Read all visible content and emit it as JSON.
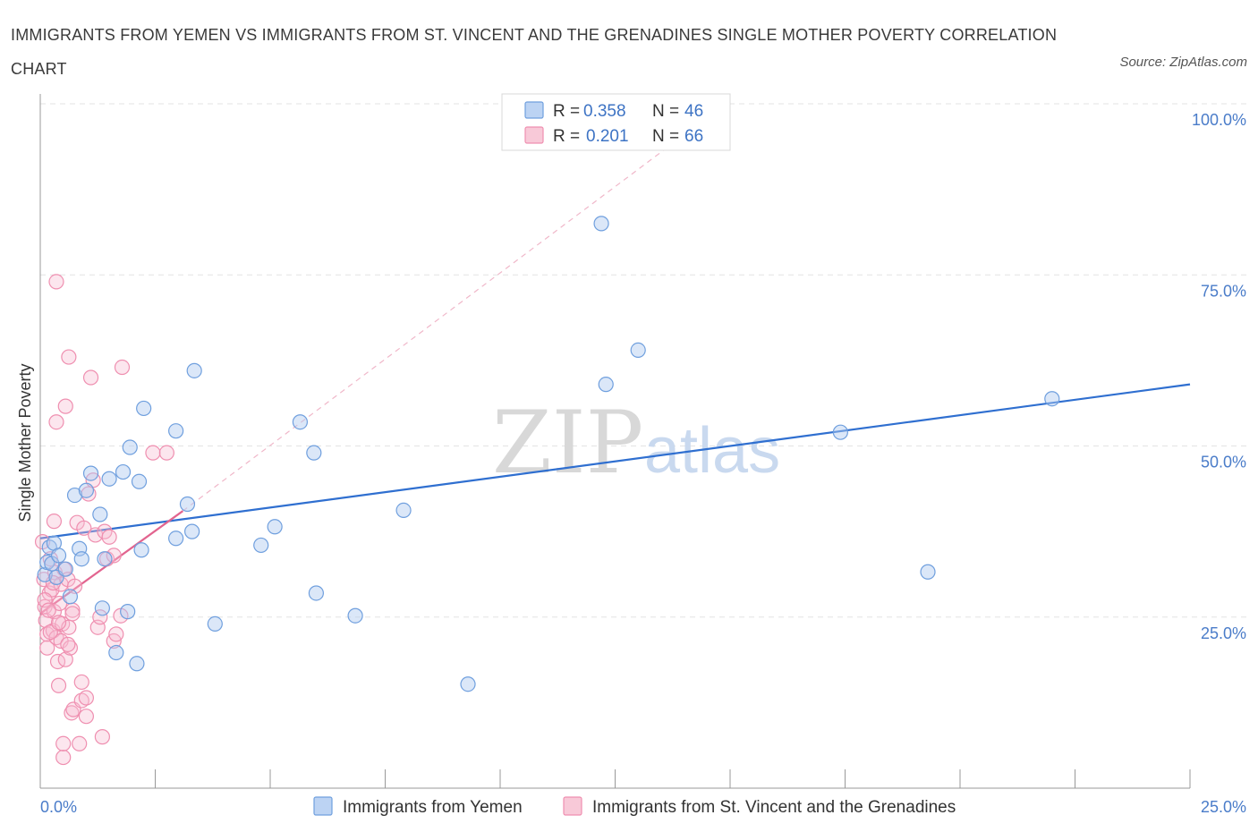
{
  "title": "IMMIGRANTS FROM YEMEN VS IMMIGRANTS FROM ST. VINCENT AND THE GRENADINES SINGLE MOTHER POVERTY CORRELATION CHART",
  "source": "Source: ZipAtlas.com",
  "watermark": {
    "zip": "ZIP",
    "atlas": "atlas"
  },
  "chart_data": {
    "type": "scatter",
    "ylabel": "Single Mother Poverty",
    "xlabel": "",
    "xlim": [
      0,
      25
    ],
    "ylim": [
      0,
      100
    ],
    "x_tick_labels": [
      "0.0%",
      "25.0%"
    ],
    "y_ticks": [
      25,
      50,
      75,
      100
    ],
    "y_tick_labels": [
      "25.0%",
      "50.0%",
      "75.0%",
      "100.0%"
    ],
    "grid": true,
    "legend_position": "top-center",
    "colors": {
      "yemen": "#6f9fde",
      "stvincent": "#ef8fb0",
      "yemen_line": "#2f6fd0",
      "stvincent_line": "#e2648f",
      "tick": "#4a7cc9"
    },
    "legend_box": [
      {
        "r_label": "R =",
        "r_value": "0.358",
        "n_label": "N =",
        "n_value": "46"
      },
      {
        "r_label": "R =",
        "r_value": "0.201",
        "n_label": "N =",
        "n_value": "66"
      }
    ],
    "series": [
      {
        "name": "Immigrants from Yemen",
        "trend": {
          "x": [
            0,
            25
          ],
          "y": [
            36.5,
            59.0
          ]
        },
        "points": [
          [
            0.1,
            31.2
          ],
          [
            0.15,
            33.0
          ],
          [
            0.2,
            35.2
          ],
          [
            0.25,
            32.8
          ],
          [
            0.3,
            35.8
          ],
          [
            0.35,
            30.8
          ],
          [
            0.4,
            34.0
          ],
          [
            0.55,
            32.0
          ],
          [
            0.65,
            28.0
          ],
          [
            0.75,
            42.8
          ],
          [
            0.85,
            35.0
          ],
          [
            0.9,
            33.5
          ],
          [
            1.0,
            43.5
          ],
          [
            1.1,
            46.0
          ],
          [
            1.3,
            40.0
          ],
          [
            1.35,
            26.3
          ],
          [
            1.4,
            33.5
          ],
          [
            1.5,
            45.2
          ],
          [
            1.65,
            19.8
          ],
          [
            1.8,
            46.2
          ],
          [
            1.9,
            25.8
          ],
          [
            1.95,
            49.8
          ],
          [
            2.1,
            18.2
          ],
          [
            2.15,
            44.8
          ],
          [
            2.2,
            34.8
          ],
          [
            2.25,
            55.5
          ],
          [
            2.95,
            52.2
          ],
          [
            2.95,
            36.5
          ],
          [
            3.2,
            41.5
          ],
          [
            3.3,
            37.5
          ],
          [
            3.35,
            61.0
          ],
          [
            3.8,
            24.0
          ],
          [
            4.8,
            35.5
          ],
          [
            5.1,
            38.2
          ],
          [
            5.65,
            53.5
          ],
          [
            5.95,
            49.0
          ],
          [
            6.0,
            28.5
          ],
          [
            6.85,
            25.2
          ],
          [
            7.9,
            40.6
          ],
          [
            9.3,
            15.2
          ],
          [
            12.2,
            82.5
          ],
          [
            12.3,
            59.0
          ],
          [
            13.0,
            64.0
          ],
          [
            17.4,
            52.0
          ],
          [
            19.3,
            31.6
          ],
          [
            22.0,
            56.9
          ]
        ]
      },
      {
        "name": "Immigrants from St. Vincent and the Grenadines",
        "trend": {
          "x": [
            0,
            3.1
          ],
          "y": [
            25.5,
            40.5
          ]
        },
        "ext": {
          "x": [
            3.1,
            15.0
          ],
          "y": [
            40.5,
            100.5
          ]
        },
        "points": [
          [
            0.05,
            36.0
          ],
          [
            0.08,
            30.5
          ],
          [
            0.1,
            26.5
          ],
          [
            0.12,
            24.5
          ],
          [
            0.15,
            22.5
          ],
          [
            0.15,
            20.5
          ],
          [
            0.2,
            28.5
          ],
          [
            0.22,
            33.5
          ],
          [
            0.25,
            29.0
          ],
          [
            0.28,
            23.0
          ],
          [
            0.3,
            25.8
          ],
          [
            0.3,
            39.0
          ],
          [
            0.32,
            31.5
          ],
          [
            0.35,
            22.0
          ],
          [
            0.35,
            53.5
          ],
          [
            0.35,
            74.0
          ],
          [
            0.38,
            18.5
          ],
          [
            0.4,
            15.0
          ],
          [
            0.42,
            27.0
          ],
          [
            0.45,
            21.5
          ],
          [
            0.45,
            29.8
          ],
          [
            0.48,
            24.0
          ],
          [
            0.5,
            4.5
          ],
          [
            0.5,
            6.5
          ],
          [
            0.52,
            32.0
          ],
          [
            0.55,
            18.8
          ],
          [
            0.55,
            55.8
          ],
          [
            0.6,
            30.5
          ],
          [
            0.62,
            23.5
          ],
          [
            0.62,
            63.0
          ],
          [
            0.65,
            20.5
          ],
          [
            0.68,
            11.0
          ],
          [
            0.7,
            26.0
          ],
          [
            0.72,
            11.5
          ],
          [
            0.75,
            29.5
          ],
          [
            0.8,
            38.8
          ],
          [
            0.85,
            6.5
          ],
          [
            0.9,
            15.5
          ],
          [
            0.9,
            12.8
          ],
          [
            0.95,
            38.0
          ],
          [
            1.0,
            10.5
          ],
          [
            1.0,
            13.2
          ],
          [
            1.05,
            43.0
          ],
          [
            1.1,
            60.0
          ],
          [
            1.15,
            45.0
          ],
          [
            1.2,
            37.0
          ],
          [
            1.25,
            23.5
          ],
          [
            1.3,
            25.0
          ],
          [
            1.35,
            7.5
          ],
          [
            1.4,
            37.5
          ],
          [
            1.45,
            33.5
          ],
          [
            1.5,
            36.7
          ],
          [
            1.6,
            34.0
          ],
          [
            1.6,
            21.5
          ],
          [
            1.65,
            22.5
          ],
          [
            1.75,
            25.2
          ],
          [
            1.78,
            61.5
          ],
          [
            2.45,
            49.0
          ],
          [
            2.75,
            49.0
          ],
          [
            0.1,
            27.5
          ],
          [
            0.18,
            26.0
          ],
          [
            0.22,
            22.8
          ],
          [
            0.28,
            30.0
          ],
          [
            0.4,
            24.2
          ],
          [
            0.6,
            21.0
          ],
          [
            0.7,
            25.5
          ]
        ]
      }
    ]
  }
}
